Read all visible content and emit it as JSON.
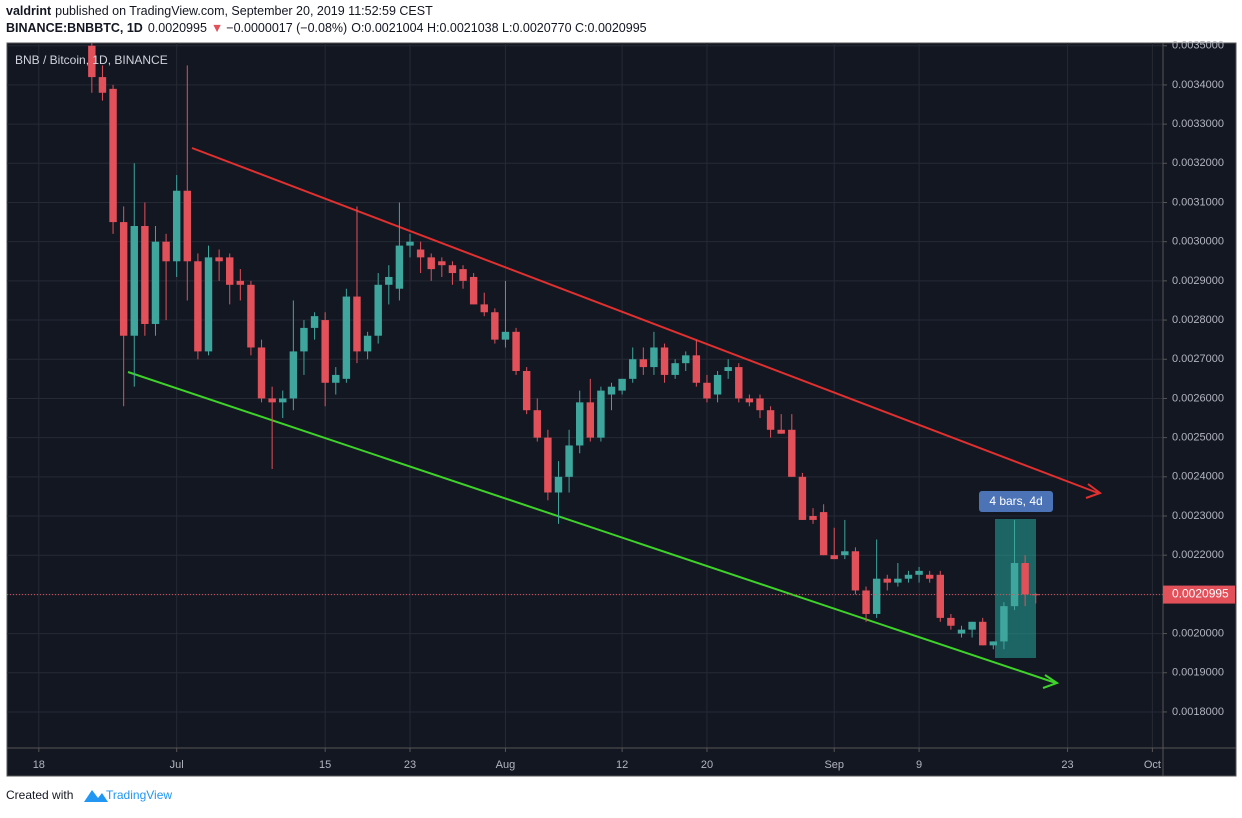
{
  "header": {
    "author": "valdrint",
    "published": "published on TradingView.com, September 20, 2019 11:52:59 CEST",
    "symbol": "BINANCE:BNBBTC, 1D",
    "last": "0.0020995",
    "arrow": "▼",
    "change": "−0.0000017 (−0.08%)",
    "ohlc": "O:0.0021004 H:0.0021038 L:0.0020770 C:0.0020995"
  },
  "footer": {
    "created": "Created with",
    "brand": "TradingView"
  },
  "chart_data": {
    "type": "candlestick",
    "title": "BNB / Bitcoin, 1D, BINANCE",
    "x": [
      "Jun 23",
      "Jun 24",
      "Jun 25",
      "Jun 26",
      "Jun 27",
      "Jun 28",
      "Jun 29",
      "Jun 30",
      "Jul 1",
      "Jul 2",
      "Jul 3",
      "Jul 4",
      "Jul 5",
      "Jul 6",
      "Jul 7",
      "Jul 8",
      "Jul 9",
      "Jul 10",
      "Jul 11",
      "Jul 12",
      "Jul 13",
      "Jul 14",
      "Jul 15",
      "Jul 16",
      "Jul 17",
      "Jul 18",
      "Jul 19",
      "Jul 20",
      "Jul 21",
      "Jul 22",
      "Jul 23",
      "Jul 24",
      "Jul 25",
      "Jul 26",
      "Jul 27",
      "Jul 28",
      "Jul 29",
      "Jul 30",
      "Jul 31",
      "Aug 1",
      "Aug 2",
      "Aug 3",
      "Aug 4",
      "Aug 5",
      "Aug 6",
      "Aug 7",
      "Aug 8",
      "Aug 9",
      "Aug 10",
      "Aug 11",
      "Aug 12",
      "Aug 13",
      "Aug 14",
      "Aug 15",
      "Aug 16",
      "Aug 17",
      "Aug 18",
      "Aug 19",
      "Aug 20",
      "Aug 21",
      "Aug 22",
      "Aug 23",
      "Aug 24",
      "Aug 25",
      "Aug 26",
      "Aug 27",
      "Aug 28",
      "Aug 29",
      "Aug 30",
      "Aug 31",
      "Sep 1",
      "Sep 2",
      "Sep 3",
      "Sep 4",
      "Sep 5",
      "Sep 6",
      "Sep 7",
      "Sep 8",
      "Sep 9",
      "Sep 10",
      "Sep 11",
      "Sep 12",
      "Sep 13",
      "Sep 14",
      "Sep 15",
      "Sep 16",
      "Sep 17",
      "Sep 18",
      "Sep 19",
      "Sep 20"
    ],
    "open": [
      0.0035,
      0.00342,
      0.00339,
      0.00305,
      0.00276,
      0.00304,
      0.00279,
      0.003,
      0.00295,
      0.00313,
      0.00295,
      0.00272,
      0.00296,
      0.00296,
      0.0029,
      0.00289,
      0.00273,
      0.0026,
      0.00259,
      0.0026,
      0.00272,
      0.00278,
      0.0028,
      0.00264,
      0.00265,
      0.00286,
      0.00272,
      0.00276,
      0.00289,
      0.00288,
      0.00299,
      0.00298,
      0.00296,
      0.00295,
      0.00294,
      0.00293,
      0.00291,
      0.00284,
      0.00282,
      0.00275,
      0.00277,
      0.00267,
      0.00257,
      0.0025,
      0.00236,
      0.0024,
      0.00248,
      0.00259,
      0.0025,
      0.00261,
      0.00262,
      0.00265,
      0.0027,
      0.00268,
      0.00273,
      0.00266,
      0.00269,
      0.00271,
      0.00264,
      0.00261,
      0.00267,
      0.00268,
      0.0026,
      0.0026,
      0.00257,
      0.00252,
      0.00252,
      0.0024,
      0.0023,
      0.00231,
      0.0022,
      0.0022,
      0.00221,
      0.00211,
      0.00205,
      0.00214,
      0.00213,
      0.00214,
      0.00215,
      0.00215,
      0.00215,
      0.00204,
      0.002,
      0.00201,
      0.00203,
      0.00197,
      0.00198,
      0.00207,
      0.00218,
      0.0021004
    ],
    "high": [
      0.00355,
      0.00345,
      0.0034,
      0.00309,
      0.0032,
      0.0031,
      0.00304,
      0.00302,
      0.00317,
      0.00345,
      0.00297,
      0.00299,
      0.00298,
      0.00297,
      0.00293,
      0.0029,
      0.00275,
      0.00263,
      0.00262,
      0.00285,
      0.0028,
      0.00282,
      0.00282,
      0.00268,
      0.00288,
      0.00309,
      0.00277,
      0.00292,
      0.00294,
      0.0031,
      0.00302,
      0.003,
      0.00297,
      0.00296,
      0.00295,
      0.00294,
      0.00292,
      0.00287,
      0.00283,
      0.0029,
      0.00278,
      0.00268,
      0.0026,
      0.00252,
      0.00244,
      0.00252,
      0.00262,
      0.00265,
      0.00263,
      0.00264,
      0.00265,
      0.00273,
      0.00273,
      0.00277,
      0.00274,
      0.0027,
      0.00272,
      0.00275,
      0.00266,
      0.00267,
      0.0027,
      0.00269,
      0.00261,
      0.00261,
      0.00258,
      0.00256,
      0.00256,
      0.00241,
      0.00232,
      0.00233,
      0.00227,
      0.00229,
      0.00222,
      0.00212,
      0.00224,
      0.00215,
      0.00218,
      0.00216,
      0.00217,
      0.00216,
      0.00216,
      0.00205,
      0.00202,
      0.00203,
      0.00204,
      0.00198,
      0.00208,
      0.00229,
      0.0022,
      0.0021038
    ],
    "low": [
      0.00338,
      0.00336,
      0.00302,
      0.00258,
      0.00263,
      0.00276,
      0.00276,
      0.0028,
      0.00291,
      0.00285,
      0.0027,
      0.00271,
      0.0029,
      0.00284,
      0.00285,
      0.00271,
      0.00259,
      0.00242,
      0.00255,
      0.00257,
      0.00266,
      0.00275,
      0.00258,
      0.00261,
      0.00264,
      0.00269,
      0.0027,
      0.00274,
      0.00284,
      0.00285,
      0.00296,
      0.00292,
      0.0029,
      0.00291,
      0.00289,
      0.00288,
      0.00284,
      0.00281,
      0.00274,
      0.00273,
      0.00266,
      0.00256,
      0.00249,
      0.00234,
      0.00228,
      0.00236,
      0.00246,
      0.00249,
      0.00249,
      0.00257,
      0.00261,
      0.00264,
      0.00266,
      0.00266,
      0.00264,
      0.00265,
      0.00267,
      0.00263,
      0.00259,
      0.00259,
      0.00265,
      0.00259,
      0.00258,
      0.00255,
      0.0025,
      0.00251,
      0.0024,
      0.00229,
      0.00228,
      0.0022,
      0.00219,
      0.00219,
      0.0021,
      0.00203,
      0.00204,
      0.00211,
      0.00212,
      0.00213,
      0.00213,
      0.00213,
      0.00203,
      0.00201,
      0.00199,
      0.00199,
      0.00197,
      0.00196,
      0.00196,
      0.00206,
      0.00207,
      0.002077
    ],
    "close": [
      0.00342,
      0.00338,
      0.00305,
      0.00276,
      0.00304,
      0.00279,
      0.003,
      0.00295,
      0.00313,
      0.00295,
      0.00272,
      0.00296,
      0.00295,
      0.00289,
      0.00289,
      0.00273,
      0.0026,
      0.00259,
      0.0026,
      0.00272,
      0.00278,
      0.00281,
      0.00264,
      0.00266,
      0.00286,
      0.00272,
      0.00276,
      0.00289,
      0.00291,
      0.00299,
      0.003,
      0.00296,
      0.00293,
      0.00294,
      0.00292,
      0.0029,
      0.00284,
      0.00282,
      0.00275,
      0.00277,
      0.00267,
      0.00257,
      0.0025,
      0.00236,
      0.0024,
      0.00248,
      0.00259,
      0.0025,
      0.00262,
      0.00263,
      0.00265,
      0.0027,
      0.00268,
      0.00273,
      0.00266,
      0.00269,
      0.00271,
      0.00264,
      0.0026,
      0.00266,
      0.00268,
      0.0026,
      0.00259,
      0.00257,
      0.00252,
      0.00251,
      0.0024,
      0.00229,
      0.00229,
      0.0022,
      0.00219,
      0.00221,
      0.00211,
      0.00205,
      0.00214,
      0.00213,
      0.00214,
      0.00215,
      0.00216,
      0.00214,
      0.00204,
      0.00202,
      0.00201,
      0.00203,
      0.00197,
      0.00198,
      0.00207,
      0.00218,
      0.0021,
      0.0020995
    ],
    "up_color": "#3ea69d",
    "down_color": "#e2505a",
    "xlim": [
      "Jun 15",
      "Oct 2"
    ],
    "xticks": [
      {
        "value": "Jun 18",
        "label": "18"
      },
      {
        "value": "Jul 1",
        "label": "Jul"
      },
      {
        "value": "Jul 15",
        "label": "15"
      },
      {
        "value": "Jul 23",
        "label": "23"
      },
      {
        "value": "Aug 1",
        "label": "Aug"
      },
      {
        "value": "Aug 12",
        "label": "12"
      },
      {
        "value": "Aug 20",
        "label": "20"
      },
      {
        "value": "Sep 1",
        "label": "Sep"
      },
      {
        "value": "Sep 9",
        "label": "9"
      },
      {
        "value": "Sep 23",
        "label": "23"
      },
      {
        "value": "Oct 1",
        "label": "Oct"
      }
    ],
    "ylim": [
      0.001708,
      0.003507
    ],
    "yticks": [
      {
        "value": 0.0018,
        "label": "0.0018000"
      },
      {
        "value": 0.0019,
        "label": "0.0019000"
      },
      {
        "value": 0.002,
        "label": "0.0020000"
      },
      {
        "value": 0.0021,
        "label": "0.0021000"
      },
      {
        "value": 0.0022,
        "label": "0.0022000"
      },
      {
        "value": 0.0023,
        "label": "0.0023000"
      },
      {
        "value": 0.0024,
        "label": "0.0024000"
      },
      {
        "value": 0.0025,
        "label": "0.0025000"
      },
      {
        "value": 0.0026,
        "label": "0.0026000"
      },
      {
        "value": 0.0027,
        "label": "0.0027000"
      },
      {
        "value": 0.0028,
        "label": "0.0028000"
      },
      {
        "value": 0.0029,
        "label": "0.0029000"
      },
      {
        "value": 0.003,
        "label": "0.0030000"
      },
      {
        "value": 0.0031,
        "label": "0.0031000"
      },
      {
        "value": 0.0032,
        "label": "0.0032000"
      },
      {
        "value": 0.0033,
        "label": "0.0033000"
      },
      {
        "value": 0.0034,
        "label": "0.0034000"
      },
      {
        "value": 0.0035,
        "label": "0.0035000"
      }
    ],
    "grid": true,
    "price_line": 0.0020995,
    "price_line_color": "#e2505a",
    "range_label": "4 bars, 4d"
  }
}
